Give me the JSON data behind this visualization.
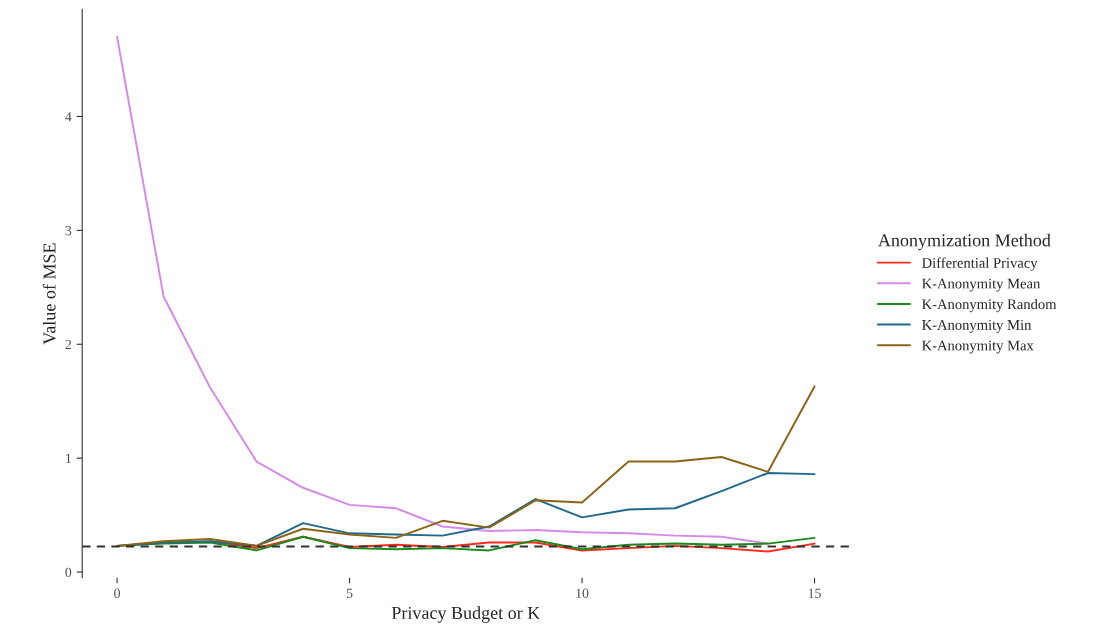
{
  "chart_data": {
    "type": "line",
    "xlabel": "Privacy Budget or K",
    "ylabel": "Value of MSE",
    "legend_title": "Anonymization Method",
    "legend": "right",
    "grid": false,
    "x": [
      0,
      1,
      2,
      3,
      4,
      5,
      6,
      7,
      8,
      9,
      10,
      11,
      12,
      13,
      14,
      15
    ],
    "xlim": [
      -0.75,
      15.75
    ],
    "xticks": [
      0,
      5,
      10,
      15
    ],
    "ylim": [
      -0.05,
      4.94
    ],
    "yticks": [
      0,
      1,
      2,
      3,
      4
    ],
    "ref_lines": [
      {
        "axis": "y",
        "value": 0.225,
        "color": "#333333",
        "line_style": "dashed"
      }
    ],
    "series": [
      {
        "name": "Differential Privacy",
        "color": "#ff2a1a",
        "values": [
          null,
          null,
          0.27,
          0.21,
          0.31,
          0.22,
          0.24,
          0.22,
          0.26,
          0.26,
          0.19,
          0.21,
          0.23,
          0.21,
          0.18,
          0.25
        ]
      },
      {
        "name": "K-Anonymity Mean",
        "color": "#d68ae8",
        "values": [
          4.7,
          2.42,
          1.62,
          0.97,
          0.74,
          0.59,
          0.56,
          0.4,
          0.36,
          0.37,
          0.35,
          0.34,
          0.32,
          0.31,
          0.25,
          null
        ]
      },
      {
        "name": "K-Anonymity Random",
        "color": "#1a8a1a",
        "values": [
          0.23,
          0.25,
          0.26,
          0.19,
          0.31,
          0.21,
          0.2,
          0.21,
          0.19,
          0.28,
          0.2,
          0.24,
          0.25,
          0.24,
          0.25,
          0.3
        ]
      },
      {
        "name": "K-Anonymity Min",
        "color": "#1f6a8c",
        "values": [
          0.23,
          0.26,
          0.27,
          0.23,
          0.43,
          0.34,
          0.33,
          0.32,
          0.4,
          0.64,
          0.48,
          0.55,
          0.56,
          0.71,
          0.87,
          0.86
        ]
      },
      {
        "name": "K-Anonymity Max",
        "color": "#8c6418",
        "values": [
          0.23,
          0.27,
          0.29,
          0.23,
          0.38,
          0.33,
          0.3,
          0.45,
          0.39,
          0.63,
          0.61,
          0.97,
          0.97,
          1.01,
          0.88,
          1.63
        ]
      }
    ]
  }
}
